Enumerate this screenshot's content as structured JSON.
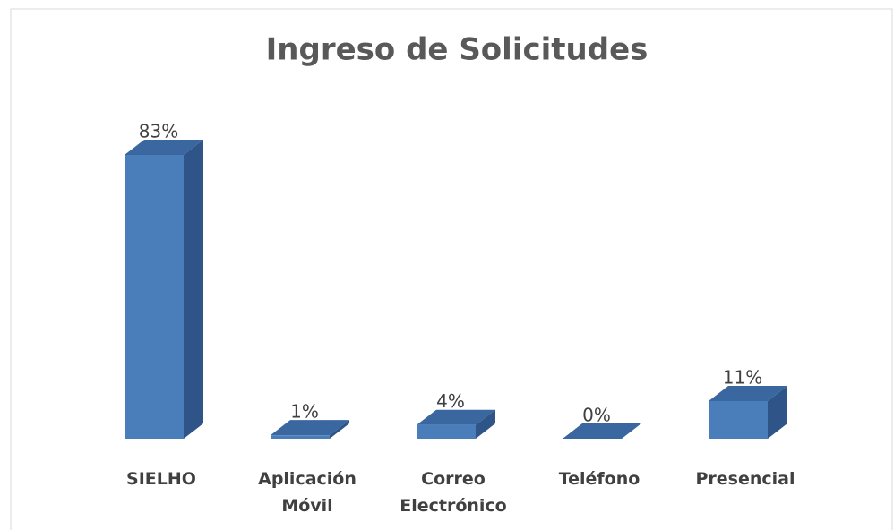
{
  "chart_data": {
    "type": "bar3d",
    "title": "Ingreso de Solicitudes",
    "categories": [
      "SIELHO",
      "Aplicación Móvil",
      "Correo Electrónico",
      "Teléfono",
      "Presencial"
    ],
    "values": [
      83,
      1,
      4,
      0,
      11
    ],
    "value_labels": [
      "83%",
      "1%",
      "4%",
      "0%",
      "11%"
    ],
    "color": "#4a7ebb"
  }
}
